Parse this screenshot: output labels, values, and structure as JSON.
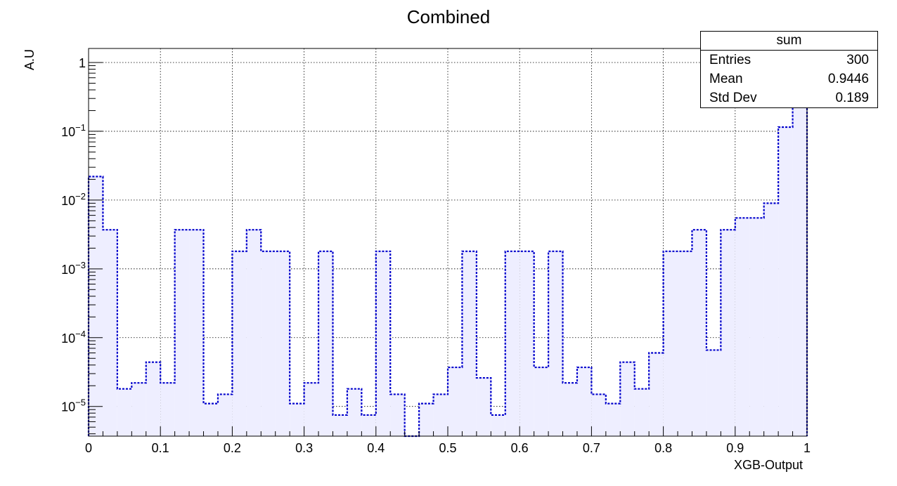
{
  "chart_data": {
    "type": "histogram",
    "title": "Combined",
    "xlabel": "XGB-Output",
    "ylabel": "A.U",
    "xlim": [
      0,
      1
    ],
    "ylim": [
      3.7e-06,
      1.6
    ],
    "yscale": "log",
    "grid": true,
    "bin_width": 0.02,
    "x_ticks": [
      "0",
      "0.1",
      "0.2",
      "0.3",
      "0.4",
      "0.5",
      "0.6",
      "0.7",
      "0.8",
      "0.9",
      "1"
    ],
    "y_ticks": [
      {
        "value": 1,
        "base": "1",
        "exp": ""
      },
      {
        "value": 0.1,
        "base": "10",
        "exp": "−1"
      },
      {
        "value": 0.01,
        "base": "10",
        "exp": "−2"
      },
      {
        "value": 0.001,
        "base": "10",
        "exp": "−3"
      },
      {
        "value": 0.0001,
        "base": "10",
        "exp": "−4"
      },
      {
        "value": 1e-05,
        "base": "10",
        "exp": "−5"
      }
    ],
    "series": [
      {
        "name": "sum",
        "line_color": "#0000cc",
        "fill_color": "#eeeeff",
        "values": [
          0.022,
          0.0037,
          1.8e-05,
          2.2e-05,
          4.4e-05,
          2.2e-05,
          0.0037,
          0.0037,
          1.1e-05,
          1.5e-05,
          0.0018,
          0.0037,
          0.0018,
          0.0018,
          1.1e-05,
          2.2e-05,
          0.0018,
          7.5e-06,
          1.8e-05,
          7.5e-06,
          0.0018,
          1.5e-05,
          3.5e-06,
          1.1e-05,
          1.5e-05,
          3.7e-05,
          0.0018,
          2.6e-05,
          7.5e-06,
          0.0018,
          0.0018,
          3.7e-05,
          0.0018,
          2.2e-05,
          3.7e-05,
          1.5e-05,
          1.1e-05,
          4.4e-05,
          1.8e-05,
          6e-05,
          0.0018,
          0.0018,
          0.0037,
          6.6e-05,
          0.0037,
          0.0055,
          0.0055,
          0.009,
          0.115,
          0.72
        ]
      }
    ],
    "stats": {
      "title": "sum",
      "rows": [
        {
          "label": "Entries",
          "value": "300"
        },
        {
          "label": "Mean",
          "value": "0.9446"
        },
        {
          "label": "Std Dev",
          "value": "0.189"
        }
      ]
    },
    "legend_position": "top-right"
  }
}
